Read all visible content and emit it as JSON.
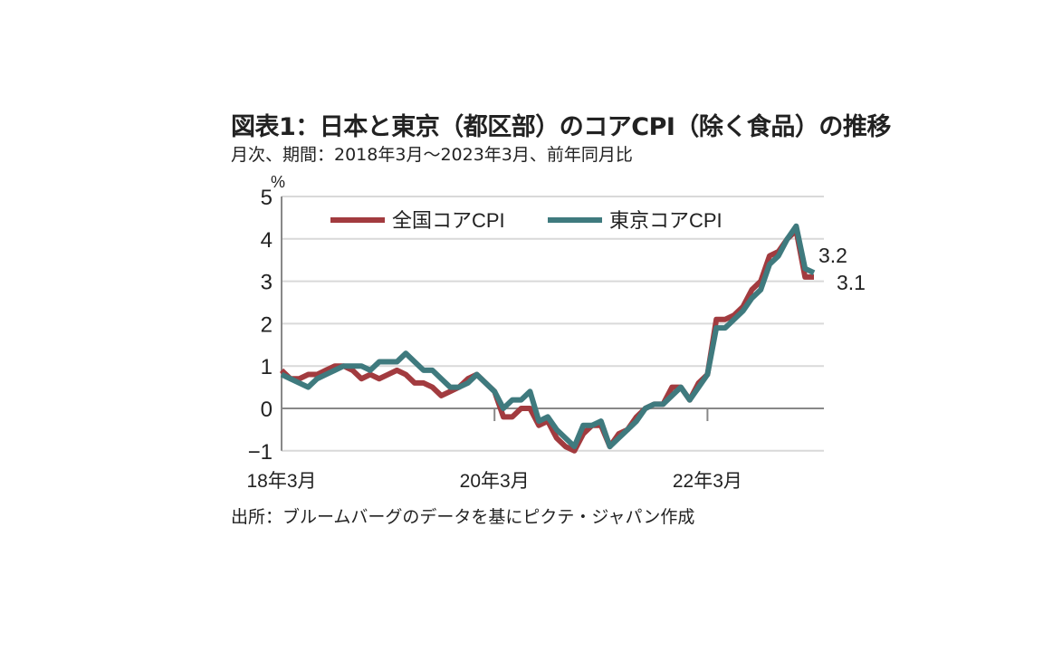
{
  "chart_data": {
    "type": "line",
    "title": "図表1：日本と東京（都区部）のコアCPI（除く食品）の推移",
    "subtitle": "月次、期間：2018年3月～2023年3月、前年同月比",
    "source": "出所：ブルームバーグのデータを基にピクテ・ジャパン作成",
    "ylabel": "%",
    "ylim": [
      -1,
      5
    ],
    "yticks": [
      "-1",
      "0",
      "1",
      "2",
      "3",
      "4",
      "5"
    ],
    "xtick_labels": [
      "18年3月",
      "20年3月",
      "22年3月"
    ],
    "x_start": "2018-03",
    "x_end": "2023-03",
    "grid": true,
    "legend_placement": "top",
    "series": [
      {
        "name": "全国コアCPI",
        "color": "#a23b3f",
        "end_label": "3.1",
        "values": [
          0.9,
          0.7,
          0.7,
          0.8,
          0.8,
          0.9,
          1.0,
          1.0,
          0.9,
          0.7,
          0.8,
          0.7,
          0.8,
          0.9,
          0.8,
          0.6,
          0.6,
          0.5,
          0.3,
          0.4,
          0.5,
          0.7,
          0.8,
          0.6,
          0.4,
          -0.2,
          -0.2,
          0.0,
          0.0,
          -0.4,
          -0.3,
          -0.7,
          -0.9,
          -1.0,
          -0.6,
          -0.4,
          -0.4,
          -0.9,
          -0.6,
          -0.5,
          -0.2,
          0.0,
          0.1,
          0.1,
          0.5,
          0.5,
          0.2,
          0.6,
          0.8,
          2.1,
          2.1,
          2.2,
          2.4,
          2.8,
          3.0,
          3.6,
          3.7,
          4.0,
          4.2,
          3.1,
          3.1
        ]
      },
      {
        "name": "東京コアCPI",
        "color": "#3f7a7e",
        "end_label": "3.2",
        "values": [
          0.8,
          0.7,
          0.6,
          0.5,
          0.7,
          0.8,
          0.9,
          1.0,
          1.0,
          1.0,
          0.9,
          1.1,
          1.1,
          1.1,
          1.3,
          1.1,
          0.9,
          0.9,
          0.7,
          0.5,
          0.5,
          0.6,
          0.8,
          0.6,
          0.4,
          0.0,
          0.2,
          0.2,
          0.4,
          -0.3,
          -0.2,
          -0.5,
          -0.7,
          -0.9,
          -0.4,
          -0.4,
          -0.3,
          -0.9,
          -0.7,
          -0.5,
          -0.3,
          0.0,
          0.1,
          0.1,
          0.3,
          0.5,
          0.2,
          0.5,
          0.8,
          1.9,
          1.9,
          2.1,
          2.3,
          2.6,
          2.8,
          3.4,
          3.6,
          4.0,
          4.3,
          3.3,
          3.2
        ]
      }
    ]
  }
}
